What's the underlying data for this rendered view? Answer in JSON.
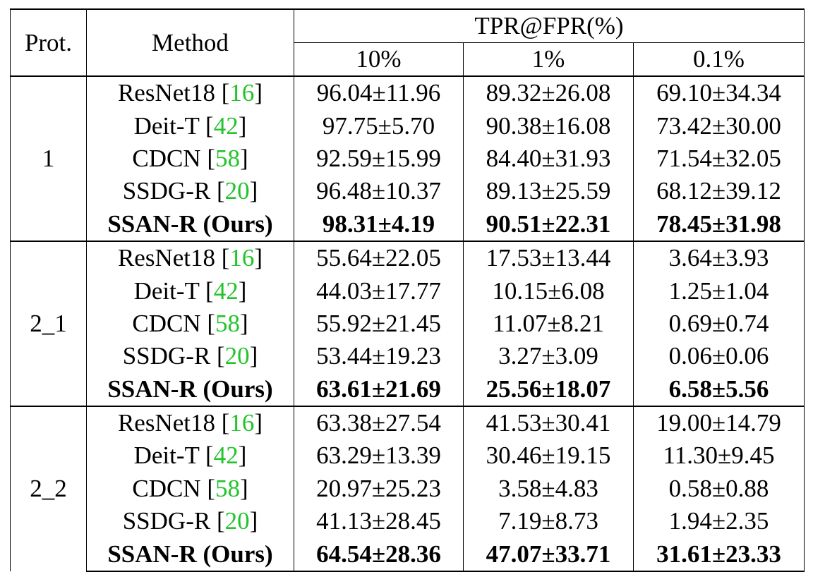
{
  "table": {
    "headers": {
      "protocol": "Prot.",
      "method": "Method",
      "metric_group": "TPR@FPR(%)",
      "fpr_levels": [
        "10%",
        "1%",
        "0.1%"
      ]
    },
    "groups": [
      {
        "protocol": "1",
        "rows": [
          {
            "method": "ResNet18",
            "ref": "16",
            "values": [
              "96.04±11.96",
              "89.32±26.08",
              "69.10±34.34"
            ]
          },
          {
            "method": "Deit-T",
            "ref": "42",
            "values": [
              "97.75±5.70",
              "90.38±16.08",
              "73.42±30.00"
            ]
          },
          {
            "method": "CDCN",
            "ref": "58",
            "values": [
              "92.59±15.99",
              "84.40±31.93",
              "71.54±32.05"
            ]
          },
          {
            "method": "SSDG-R",
            "ref": "20",
            "values": [
              "96.48±10.37",
              "89.13±25.59",
              "68.12±39.12"
            ]
          },
          {
            "method": "SSAN-R (Ours)",
            "values": [
              "98.31±4.19",
              "90.51±22.31",
              "78.45±31.98"
            ],
            "bold": true
          }
        ]
      },
      {
        "protocol": "2_1",
        "rows": [
          {
            "method": "ResNet18",
            "ref": "16",
            "values": [
              "55.64±22.05",
              "17.53±13.44",
              "3.64±3.93"
            ]
          },
          {
            "method": "Deit-T",
            "ref": "42",
            "values": [
              "44.03±17.77",
              "10.15±6.08",
              "1.25±1.04"
            ]
          },
          {
            "method": "CDCN",
            "ref": "58",
            "values": [
              "55.92±21.45",
              "11.07±8.21",
              "0.69±0.74"
            ]
          },
          {
            "method": "SSDG-R",
            "ref": "20",
            "values": [
              "53.44±19.23",
              "3.27±3.09",
              "0.06±0.06"
            ]
          },
          {
            "method": "SSAN-R (Ours)",
            "values": [
              "63.61±21.69",
              "25.56±18.07",
              "6.58±5.56"
            ],
            "bold": true
          }
        ]
      },
      {
        "protocol": "2_2",
        "rows": [
          {
            "method": "ResNet18",
            "ref": "16",
            "values": [
              "63.38±27.54",
              "41.53±30.41",
              "19.00±14.79"
            ]
          },
          {
            "method": "Deit-T",
            "ref": "42",
            "values": [
              "63.29±13.39",
              "30.46±19.15",
              "11.30±9.45"
            ]
          },
          {
            "method": "CDCN",
            "ref": "58",
            "values": [
              "20.97±25.23",
              "3.58±4.83",
              "0.58±0.88"
            ]
          },
          {
            "method": "SSDG-R",
            "ref": "20",
            "values": [
              "41.13±28.45",
              "7.19±8.73",
              "1.94±2.35"
            ]
          },
          {
            "method": "SSAN-R (Ours)",
            "values": [
              "64.54±28.36",
              "47.07±33.71",
              "31.61±23.33"
            ],
            "bold": true
          }
        ]
      }
    ],
    "colors": {
      "reference_link": "#21c42b",
      "text": "#000000"
    }
  }
}
